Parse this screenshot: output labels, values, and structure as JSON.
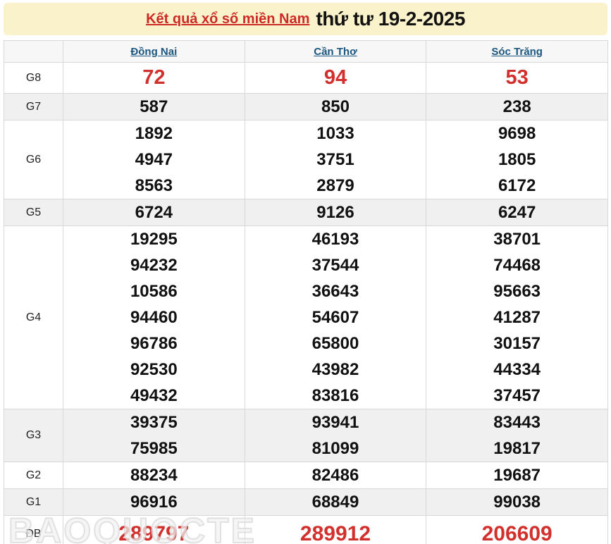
{
  "title": {
    "link_label": "Kết quả xổ số miền Nam",
    "date_label": "thứ tư 19-2-2025"
  },
  "watermark_text": "BAOQUOCTE",
  "colors": {
    "title_bg": "#faf2ca",
    "title_link_red": "#cd2a26",
    "highlight_red": "#d2302c",
    "column_link_blue": "#1a567f",
    "alt_row_bg": "#f0f0f0",
    "header_row_bg": "#f7f7f7",
    "border": "#d8d8d8"
  },
  "table": {
    "columns": [
      "Đồng Nai",
      "Cần Thơ",
      "Sóc Trăng"
    ],
    "rows": [
      {
        "label": "G8",
        "cls": "g8",
        "values": [
          [
            "72"
          ],
          [
            "94"
          ],
          [
            "53"
          ]
        ]
      },
      {
        "label": "G7",
        "cls": "",
        "values": [
          [
            "587"
          ],
          [
            "850"
          ],
          [
            "238"
          ]
        ]
      },
      {
        "label": "G6",
        "cls": "",
        "values": [
          [
            "1892",
            "4947",
            "8563"
          ],
          [
            "1033",
            "3751",
            "2879"
          ],
          [
            "9698",
            "1805",
            "6172"
          ]
        ]
      },
      {
        "label": "G5",
        "cls": "",
        "values": [
          [
            "6724"
          ],
          [
            "9126"
          ],
          [
            "6247"
          ]
        ]
      },
      {
        "label": "G4",
        "cls": "",
        "values": [
          [
            "19295",
            "94232",
            "10586",
            "94460",
            "96786",
            "92530",
            "49432"
          ],
          [
            "46193",
            "37544",
            "36643",
            "54607",
            "65800",
            "43982",
            "83816"
          ],
          [
            "38701",
            "74468",
            "95663",
            "41287",
            "30157",
            "44334",
            "37457"
          ]
        ]
      },
      {
        "label": "G3",
        "cls": "",
        "values": [
          [
            "39375",
            "75985"
          ],
          [
            "93941",
            "81099"
          ],
          [
            "83443",
            "19817"
          ]
        ]
      },
      {
        "label": "G2",
        "cls": "",
        "values": [
          [
            "88234"
          ],
          [
            "82486"
          ],
          [
            "19687"
          ]
        ]
      },
      {
        "label": "G1",
        "cls": "",
        "values": [
          [
            "96916"
          ],
          [
            "68849"
          ],
          [
            "99038"
          ]
        ]
      },
      {
        "label": "ĐB",
        "cls": "db",
        "values": [
          [
            "289797"
          ],
          [
            "289912"
          ],
          [
            "206609"
          ]
        ]
      }
    ]
  }
}
